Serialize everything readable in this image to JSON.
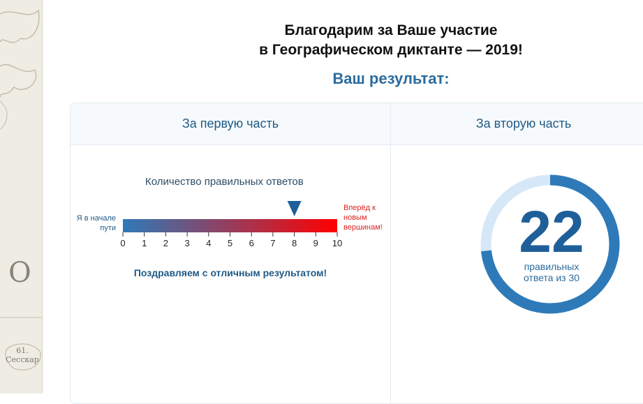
{
  "header": {
    "thanks_line1": "Благодарим за Ваше участие",
    "thanks_line2": "в Географическом диктанте — 2019!",
    "result_title": "Ваш результат:"
  },
  "part1": {
    "title": "За первую часть",
    "count_label": "Количество правильных ответов",
    "scale_left_label_1": "Я в начале",
    "scale_left_label_2": "пути",
    "scale_right_label_1": "Вперёд к",
    "scale_right_label_2": "новым",
    "scale_right_label_3": "вершинам!",
    "ticks": [
      "0",
      "1",
      "2",
      "3",
      "4",
      "5",
      "6",
      "7",
      "8",
      "9",
      "10"
    ],
    "score": 8,
    "max": 10,
    "congrats": "Поздравляем с отличным результатом!",
    "colors": {
      "start": "#2e7ab8",
      "end": "#ff0000",
      "marker": "#1f5f99"
    }
  },
  "part2": {
    "title": "За вторую часть",
    "score": "22",
    "caption_line1": "правильных",
    "caption_line2": "ответа из 30",
    "correct": 22,
    "total": 30,
    "colors": {
      "filled": "#2e7ab8",
      "empty": "#d6e8f8"
    }
  },
  "map": {
    "letter": "О",
    "sheet_label_1": "61.",
    "sheet_label_2": "Сесскар"
  }
}
